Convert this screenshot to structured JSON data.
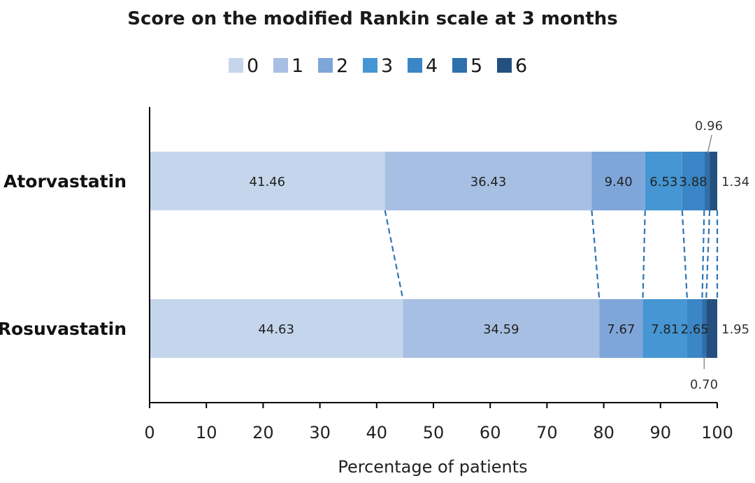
{
  "chart_data": {
    "type": "bar",
    "orientation": "horizontal",
    "stacked": true,
    "title": "Score on the modified Rankin scale at 3 months",
    "xlabel": "Percentage of patients",
    "ylabel": "",
    "xlim": [
      0,
      100
    ],
    "xticks": [
      "0",
      "10",
      "20",
      "30",
      "40",
      "50",
      "60",
      "70",
      "80",
      "90",
      "100"
    ],
    "legend_position": "top",
    "categories": [
      "Atorvastatin",
      "Rosuvastatin"
    ],
    "series": [
      {
        "name": "0",
        "color": "#c5d6ec",
        "values": [
          41.46,
          44.63
        ]
      },
      {
        "name": "1",
        "color": "#a7bfe2",
        "values": [
          36.43,
          34.59
        ]
      },
      {
        "name": "2",
        "color": "#7fa6d9",
        "values": [
          9.4,
          7.67
        ]
      },
      {
        "name": "3",
        "color": "#4596d3",
        "values": [
          6.53,
          7.81
        ]
      },
      {
        "name": "4",
        "color": "#3a86c6",
        "values": [
          3.88,
          2.65
        ]
      },
      {
        "name": "5",
        "color": "#2e6fac",
        "values": [
          0.96,
          0.7
        ]
      },
      {
        "name": "6",
        "color": "#24507f",
        "values": [
          1.34,
          1.95
        ]
      }
    ],
    "data_labels": [
      [
        "41.46",
        "36.43",
        "9.40",
        "6.53",
        "3.88",
        "0.96",
        "1.34"
      ],
      [
        "44.63",
        "34.59",
        "7.67",
        "7.81",
        "2.65",
        "0.70",
        "1.95"
      ]
    ],
    "connector_lines": "dashed",
    "connector_color": "#2e75b6"
  }
}
